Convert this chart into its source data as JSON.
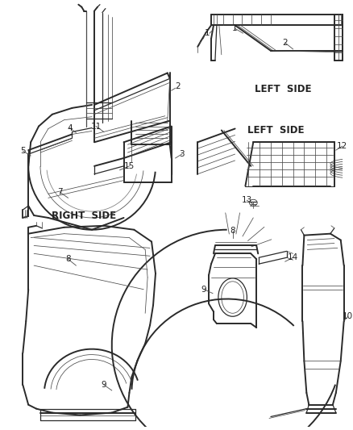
{
  "bg_color": "#ffffff",
  "line_color": "#4a4a4a",
  "dark_line": "#2a2a2a",
  "light_line": "#7a7a7a",
  "figsize": [
    4.38,
    5.33
  ],
  "dpi": 100,
  "text_labels": {
    "RIGHT SIDE": [
      0.13,
      0.49
    ],
    "LEFT SIDE": [
      0.79,
      0.3
    ]
  }
}
